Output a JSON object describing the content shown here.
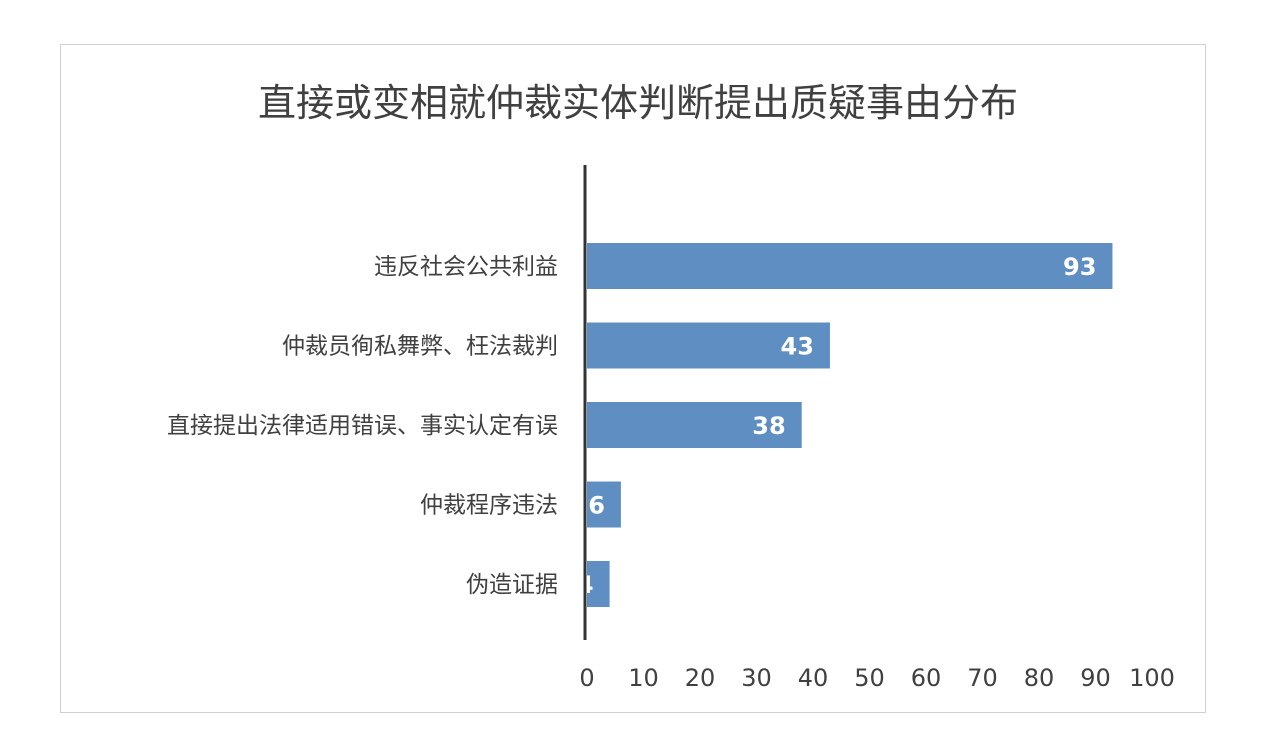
{
  "chart_data": {
    "type": "bar",
    "orientation": "horizontal",
    "title": "直接或变相就仲裁实体判断提出质疑事由分布",
    "categories": [
      "违反社会公共利益",
      "仲裁员徇私舞弊、枉法裁判",
      "直接提出法律适用错误、事实认定有误",
      "仲裁程序违法",
      "伪造证据"
    ],
    "values": [
      93,
      43,
      38,
      6,
      4
    ],
    "xlim": [
      0,
      100
    ],
    "xticks": [
      0,
      10,
      20,
      30,
      40,
      50,
      60,
      70,
      80,
      90,
      100
    ],
    "xlabel": "",
    "ylabel": "",
    "grid": false,
    "data_labels": true,
    "bar_color": "#5f8fc2"
  }
}
